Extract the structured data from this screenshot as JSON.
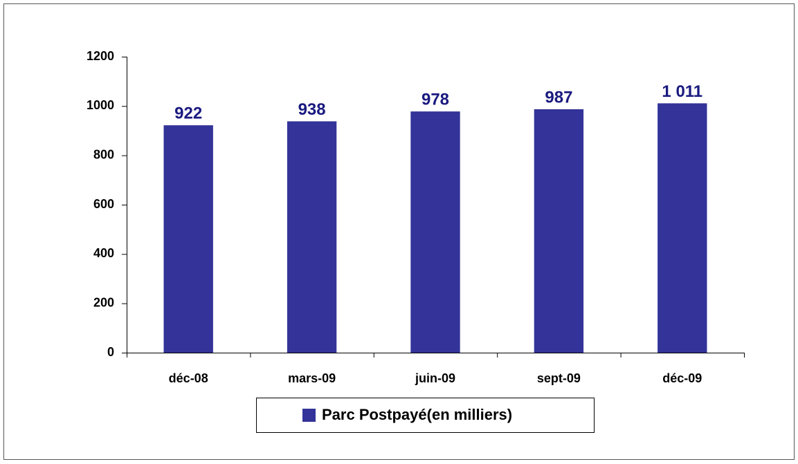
{
  "chart_data": {
    "type": "bar",
    "categories": [
      "déc-08",
      "mars-09",
      "juin-09",
      "sept-09",
      "déc-09"
    ],
    "series": [
      {
        "name": "Parc Postpayé(en milliers)",
        "color": "#333399",
        "values": [
          922,
          938,
          978,
          987,
          1011
        ],
        "value_labels": [
          "922",
          "938",
          "978",
          "987",
          "1 011"
        ]
      }
    ],
    "ylim": [
      0,
      1200
    ],
    "yticks": [
      0,
      200,
      400,
      600,
      800,
      1000,
      1200
    ],
    "grid": false,
    "legend": "bottom"
  }
}
